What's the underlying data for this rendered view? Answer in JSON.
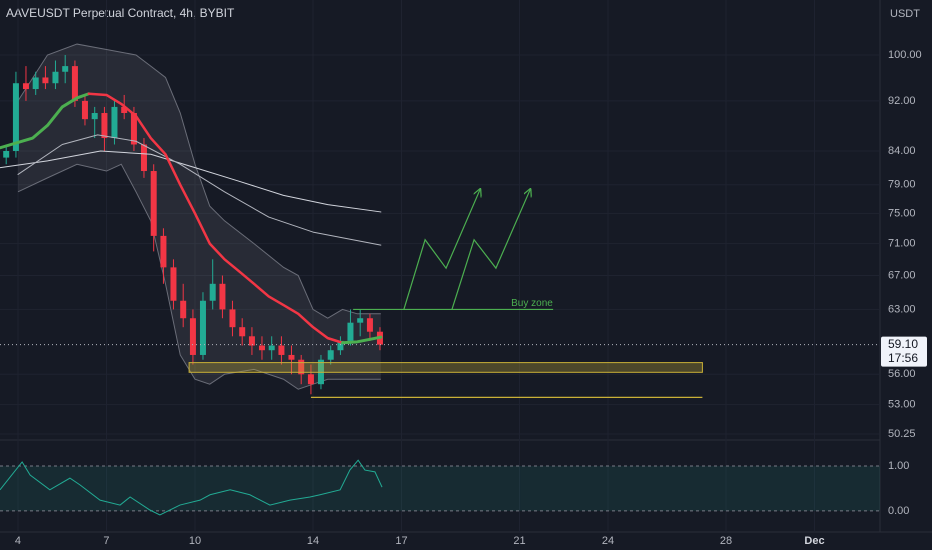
{
  "chart_data": [
    {
      "type": "candlestick",
      "title": "AAVEUSDT Perpetual Contract, 4h, BYBIT",
      "unit": "USDT",
      "x": [
        3.6,
        3.93,
        4.27,
        4.6,
        4.93,
        5.27,
        5.6,
        5.93,
        6.27,
        6.6,
        6.93,
        7.27,
        7.6,
        7.93,
        8.27,
        8.6,
        8.93,
        9.27,
        9.6,
        9.93,
        10.27,
        10.6,
        10.93,
        11.27,
        11.6,
        11.93,
        12.27,
        12.6,
        12.93,
        13.27,
        13.6,
        13.93,
        14.27,
        14.6,
        14.93,
        15.27,
        15.6,
        15.93,
        16.27
      ],
      "open": [
        83,
        84,
        95,
        94,
        96,
        95,
        97,
        98,
        92,
        89,
        90,
        86,
        91,
        90,
        85,
        81,
        72,
        68,
        64,
        62,
        58,
        64,
        66,
        63,
        61,
        60,
        59,
        58.5,
        59,
        58,
        57.5,
        56,
        55,
        57.5,
        58.5,
        59.5,
        61.5,
        62,
        60.5
      ],
      "high": [
        85,
        97,
        98,
        97,
        98,
        99,
        100,
        99,
        93,
        91,
        91,
        92,
        93,
        91,
        86,
        82,
        73,
        69,
        66,
        63,
        65,
        69,
        67,
        64,
        62,
        61,
        60,
        60,
        60,
        59,
        58,
        57,
        58,
        59,
        60,
        63,
        63,
        62.5,
        61
      ],
      "low": [
        82,
        83,
        92,
        93,
        94,
        94,
        95,
        91,
        88,
        86,
        84,
        85,
        89,
        84,
        80,
        70,
        66,
        63,
        61,
        57,
        57.5,
        63,
        62,
        60,
        59,
        58,
        57.5,
        57.5,
        57,
        56,
        55,
        54,
        54.5,
        57,
        58,
        59,
        60,
        59.5,
        58.5
      ],
      "close": [
        84,
        95,
        94,
        96,
        95,
        97,
        98,
        92,
        89,
        90,
        86,
        91,
        90,
        85,
        81,
        72,
        68,
        64,
        62,
        58,
        64,
        66,
        63,
        61,
        60,
        59,
        58.5,
        59,
        58,
        57.5,
        56,
        55,
        57.5,
        58.5,
        59.5,
        61.5,
        62,
        60.5,
        59.1
      ],
      "up_color": "#22ab94",
      "down_color": "#f23645",
      "log_scale": true,
      "ylim": [
        49.7,
        110.5
      ],
      "yticks": [
        {
          "value": 100,
          "label": "100.00"
        },
        {
          "value": 92,
          "label": "92.00"
        },
        {
          "value": 84,
          "label": "84.00"
        },
        {
          "value": 79,
          "label": "79.00"
        },
        {
          "value": 75,
          "label": "75.00"
        },
        {
          "value": 71,
          "label": "71.00"
        },
        {
          "value": 67,
          "label": "67.00"
        },
        {
          "value": 63,
          "label": "63.00"
        },
        {
          "value": 56,
          "label": "56.00"
        },
        {
          "value": 53,
          "label": "53.00"
        },
        {
          "value": 50.25,
          "label": "50.25"
        }
      ],
      "xlim": [
        3.39,
        33.22
      ],
      "xticks": [
        4,
        7,
        10,
        14,
        17,
        21,
        24,
        28,
        {
          "value": 31,
          "label": "Dec"
        }
      ],
      "last_price": {
        "value": 59.1,
        "label": "59.10"
      },
      "countdown": "17:56",
      "lines": [
        {
          "color": "#d1d4dc",
          "width": 1,
          "x": [
            3.4,
            5,
            6.8,
            8.5,
            10,
            11.5,
            13,
            14.5,
            16.3
          ],
          "values": [
            81.5,
            82.5,
            84,
            83.5,
            81.5,
            79.5,
            77.5,
            76.2,
            75.2
          ]
        },
        {
          "color": "#b2b5be",
          "width": 1,
          "x": [
            4,
            5.5,
            6.7,
            8,
            9.5,
            11,
            12.5,
            14,
            16.3
          ],
          "values": [
            80.5,
            85,
            86.5,
            85.5,
            82,
            78,
            74.5,
            72.5,
            70.8
          ]
        },
        {
          "color": "#4caf50",
          "width": 3,
          "x": [
            3.4,
            4.5,
            5,
            5.5,
            6,
            6.4
          ],
          "values": [
            84.5,
            86,
            88,
            91,
            92.5,
            93.2
          ]
        },
        {
          "color": "#f23645",
          "width": 2.5,
          "x": [
            6.4,
            7,
            7.5,
            8,
            8.5,
            9,
            9.5,
            10,
            10.5,
            11,
            11.5,
            12,
            12.5,
            13,
            13.5,
            14,
            14.5,
            15
          ],
          "values": [
            93.2,
            93,
            91.5,
            89.5,
            86,
            83.5,
            79,
            75,
            71,
            69,
            67.5,
            66,
            64.5,
            63.5,
            62.5,
            61,
            59.8,
            59.3
          ]
        },
        {
          "color": "#4caf50",
          "width": 3,
          "x": [
            15,
            15.5,
            16.3
          ],
          "values": [
            59.3,
            59.4,
            59.9
          ]
        }
      ],
      "band": {
        "x": [
          4,
          5,
          6,
          7,
          7.5,
          8,
          8.5,
          9,
          9.5,
          10,
          10.5,
          11,
          12,
          13,
          13.5,
          14,
          14.5,
          15,
          15.5,
          16.3
        ],
        "upper": [
          92,
          100,
          102,
          101,
          100.5,
          100,
          98,
          96,
          90,
          82,
          76,
          74,
          71,
          68,
          67,
          63,
          62,
          63,
          62.5,
          62.5
        ],
        "lower": [
          78,
          80,
          82,
          81,
          82,
          78,
          74,
          66,
          58,
          55.5,
          55,
          56,
          56.5,
          55.5,
          54.5,
          55,
          55.5,
          55.5,
          55.5,
          55.5
        ]
      },
      "drawings": [
        {
          "kind": "box",
          "color": "#c9b037",
          "x": [
            9.8,
            27.2
          ],
          "y": [
            57.2,
            56.2
          ]
        },
        {
          "kind": "line",
          "color": "#c9b037",
          "x": [
            13.93,
            27.2
          ],
          "y": [
            53.7,
            53.7
          ]
        },
        {
          "kind": "line",
          "color": "#4caf50",
          "x": [
            15.36,
            22.14
          ],
          "y": [
            63,
            63
          ],
          "label": "Buy zone"
        },
        {
          "kind": "arrow",
          "color": "#4caf50",
          "x": [
            17.08,
            17.8,
            18.51,
            19.66
          ],
          "y": [
            63,
            71.5,
            67.9,
            78.3
          ]
        },
        {
          "kind": "arrow",
          "color": "#4caf50",
          "x": [
            18.71,
            19.46,
            20.2,
            21.36
          ],
          "y": [
            63,
            71.5,
            67.9,
            78.3
          ]
        }
      ]
    },
    {
      "type": "oscillator",
      "color": "#22ab94",
      "x": [
        3.39,
        4.14,
        4.41,
        5.08,
        5.76,
        6.1,
        6.78,
        7.46,
        7.8,
        8.47,
        8.81,
        9.49,
        10.17,
        10.51,
        11.19,
        11.86,
        12.54,
        13.22,
        13.9,
        14.24,
        14.92,
        15.25,
        15.53,
        15.76,
        16.1,
        16.34
      ],
      "values": [
        0.47,
        1.09,
        0.8,
        0.47,
        0.73,
        0.58,
        0.24,
        0.13,
        0.31,
        0.02,
        -0.09,
        0.13,
        0.24,
        0.36,
        0.47,
        0.36,
        0.13,
        0.24,
        0.31,
        0.36,
        0.47,
        0.91,
        1.13,
        0.91,
        0.87,
        0.53
      ],
      "ylim": [
        -0.47,
        1.58
      ],
      "yticks": [
        {
          "value": 1,
          "label": "1.00"
        },
        {
          "value": 0,
          "label": "0.00"
        }
      ],
      "band": [
        0,
        1
      ]
    }
  ]
}
